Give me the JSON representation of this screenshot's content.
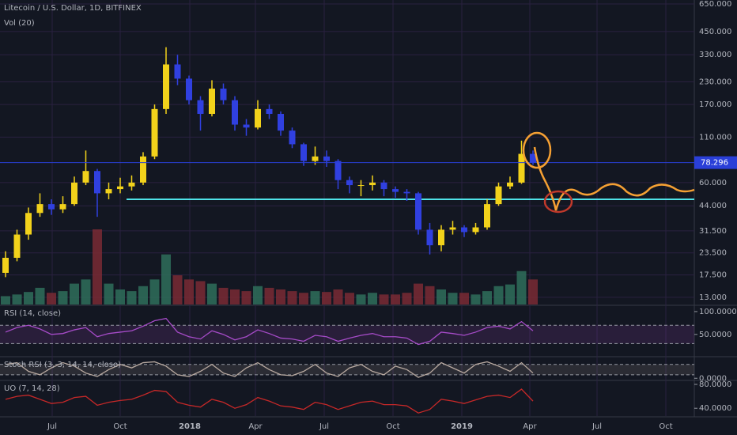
{
  "chart_data": {
    "type": "candlestick",
    "title": "Litecoin / U.S. Dollar, 1D, BITFINEX",
    "volume_label": "Vol (20)",
    "log_scale": true,
    "grid": true,
    "ylim": [
      11.8,
      685
    ],
    "yticks": [
      {
        "value": 650,
        "label": "650.000"
      },
      {
        "value": 450,
        "label": "450.000"
      },
      {
        "value": 330,
        "label": "330.000"
      },
      {
        "value": 230,
        "label": "230.000"
      },
      {
        "value": 170,
        "label": "170.000"
      },
      {
        "value": 110,
        "label": "110.000"
      },
      {
        "value": 60,
        "label": "60.000"
      },
      {
        "value": 44,
        "label": "44.000"
      },
      {
        "value": 31.5,
        "label": "31.500"
      },
      {
        "value": 23.5,
        "label": "23.500"
      },
      {
        "value": 17.5,
        "label": "17.500"
      },
      {
        "value": 13,
        "label": "13.000"
      }
    ],
    "x_labels": [
      "Jul",
      "Oct",
      "2018",
      "Apr",
      "Jul",
      "Oct",
      "2019",
      "Apr",
      "Jul",
      "Oct"
    ],
    "up_color": "#f2d21b",
    "down_color": "#3040e0",
    "volume_up_color": "#2f6e5a",
    "volume_down_color": "#7a2a34",
    "last_price": 78.296,
    "last_price_color": "#2a3fd8",
    "support_level": 48,
    "support_color": "#4fe3e8",
    "open": [
      18,
      22,
      30,
      40,
      45,
      42,
      45,
      60,
      70,
      52,
      55,
      57,
      60,
      85,
      160,
      290,
      240,
      180,
      150,
      210,
      180,
      130,
      125,
      160,
      150,
      120,
      100,
      80,
      85,
      80,
      62,
      58,
      58,
      60,
      55,
      53,
      52,
      32,
      26,
      32,
      33,
      31,
      33,
      45,
      57,
      60,
      88
    ],
    "high": [
      24,
      32,
      43,
      52,
      48,
      50,
      65,
      92,
      72,
      60,
      64,
      66,
      90,
      170,
      365,
      330,
      250,
      190,
      235,
      225,
      190,
      140,
      180,
      170,
      155,
      125,
      102,
      97,
      92,
      82,
      65,
      62,
      66,
      62,
      57,
      55,
      53,
      35,
      34,
      36,
      34,
      35,
      48,
      60,
      65,
      105,
      92
    ],
    "low": [
      17,
      21,
      28,
      38,
      39,
      40,
      44,
      58,
      38,
      48,
      52,
      54,
      58,
      82,
      150,
      220,
      170,
      120,
      145,
      170,
      120,
      112,
      122,
      140,
      112,
      95,
      75,
      76,
      74,
      55,
      52,
      50,
      54,
      50,
      49,
      47,
      30,
      23,
      24,
      30,
      29,
      30,
      32,
      44,
      55,
      59,
      76
    ],
    "close": [
      22,
      30,
      40,
      45,
      42,
      45,
      60,
      70,
      52,
      55,
      57,
      60,
      85,
      160,
      290,
      240,
      180,
      150,
      210,
      180,
      130,
      125,
      160,
      150,
      120,
      100,
      80,
      85,
      80,
      62,
      58,
      58,
      60,
      55,
      53,
      52,
      32,
      26,
      32,
      33,
      31,
      33,
      45,
      57,
      60,
      88,
      78
    ],
    "volume": [
      10,
      12,
      15,
      20,
      14,
      16,
      25,
      30,
      90,
      25,
      18,
      16,
      22,
      30,
      60,
      35,
      30,
      28,
      25,
      20,
      18,
      16,
      22,
      20,
      18,
      16,
      14,
      16,
      15,
      18,
      14,
      12,
      14,
      12,
      12,
      14,
      25,
      22,
      18,
      14,
      14,
      12,
      16,
      22,
      24,
      40,
      30
    ],
    "indicators": [
      {
        "name": "RSI (14, close)",
        "color": "#a64bc8",
        "ylim": [
          3,
          112
        ],
        "bands": [
          70,
          30
        ],
        "yticks": [
          {
            "value": 100,
            "label": "100.0000"
          },
          {
            "value": 50,
            "label": "50.0000"
          }
        ],
        "values": [
          55,
          65,
          70,
          62,
          50,
          52,
          60,
          65,
          45,
          52,
          55,
          58,
          68,
          80,
          85,
          55,
          45,
          40,
          58,
          50,
          38,
          45,
          60,
          52,
          42,
          40,
          35,
          48,
          45,
          35,
          42,
          48,
          52,
          45,
          45,
          42,
          28,
          35,
          55,
          52,
          48,
          55,
          65,
          68,
          62,
          78,
          58
        ]
      },
      {
        "name": "Stoch RSI (3, 3, 14, 14, close)",
        "color": "#b8a9a0",
        "ylim": [
          -8,
          120
        ],
        "bands": [
          80,
          20
        ],
        "yticks": [
          {
            "value": 0,
            "label": "0.0000"
          }
        ],
        "values": [
          80,
          90,
          40,
          20,
          60,
          90,
          70,
          30,
          10,
          50,
          80,
          60,
          90,
          95,
          70,
          20,
          10,
          40,
          80,
          30,
          10,
          60,
          90,
          50,
          20,
          15,
          40,
          80,
          30,
          10,
          60,
          80,
          40,
          20,
          70,
          50,
          5,
          30,
          90,
          60,
          30,
          80,
          95,
          70,
          40,
          90,
          30
        ]
      },
      {
        "name": "UO (7, 14, 28)",
        "color": "#c62828",
        "ylim": [
          27,
          85.3
        ],
        "bands": [],
        "yticks": [
          {
            "value": 80,
            "label": "80.0000"
          },
          {
            "value": 40,
            "label": "40.0000"
          }
        ],
        "values": [
          55,
          60,
          62,
          55,
          48,
          50,
          58,
          60,
          45,
          50,
          53,
          55,
          62,
          70,
          68,
          50,
          45,
          42,
          55,
          50,
          40,
          46,
          58,
          52,
          44,
          42,
          38,
          50,
          46,
          38,
          44,
          50,
          52,
          46,
          46,
          44,
          32,
          38,
          55,
          52,
          48,
          54,
          60,
          62,
          58,
          72,
          52
        ]
      }
    ]
  }
}
